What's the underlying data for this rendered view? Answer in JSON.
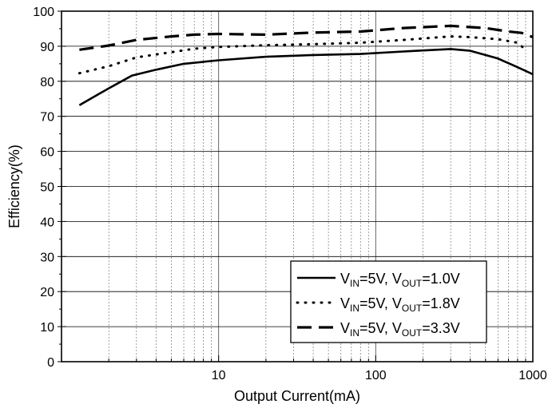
{
  "chart_data": {
    "type": "line",
    "xlabel": "Output Current(mA)",
    "ylabel": "Efficiency(%)",
    "x_scale": "log",
    "xlim": [
      1,
      1000
    ],
    "ylim": [
      0,
      100
    ],
    "x_ticks": [
      10,
      100,
      1000
    ],
    "x_tick_labels": [
      "10",
      "100",
      "1000"
    ],
    "y_ticks": [
      0,
      10,
      20,
      30,
      40,
      50,
      60,
      70,
      80,
      90,
      100
    ],
    "y_tick_labels": [
      "0",
      "10",
      "20",
      "30",
      "40",
      "50",
      "60",
      "70",
      "80",
      "90",
      "100"
    ],
    "grid": true,
    "legend_position": "bottom-right",
    "series": [
      {
        "legend": {
          "v": "V",
          "in": "IN",
          "mid": "=5V, V",
          "out": "OUT",
          "end": "=1.0V"
        },
        "line_style": "solid",
        "color": "#000000",
        "points": [
          [
            1.3,
            73.2
          ],
          [
            2,
            78
          ],
          [
            2.8,
            81.6
          ],
          [
            4,
            83.3
          ],
          [
            6,
            85
          ],
          [
            10,
            86
          ],
          [
            20,
            87
          ],
          [
            40,
            87.5
          ],
          [
            80,
            87.8
          ],
          [
            150,
            88.5
          ],
          [
            200,
            88.8
          ],
          [
            300,
            89.2
          ],
          [
            400,
            88.7
          ],
          [
            600,
            86.5
          ],
          [
            800,
            84
          ],
          [
            1000,
            82
          ]
        ]
      },
      {
        "legend": {
          "v": "V",
          "in": "IN",
          "mid": "=5V, V",
          "out": "OUT",
          "end": "=1.8V"
        },
        "line_style": "dotted",
        "color": "#000000",
        "points": [
          [
            1.3,
            82.3
          ],
          [
            2,
            84.3
          ],
          [
            3,
            86.8
          ],
          [
            5,
            88.3
          ],
          [
            7,
            89.3
          ],
          [
            10,
            89.8
          ],
          [
            20,
            90.3
          ],
          [
            40,
            90.6
          ],
          [
            80,
            91
          ],
          [
            150,
            91.8
          ],
          [
            300,
            92.8
          ],
          [
            400,
            92.6
          ],
          [
            600,
            92
          ],
          [
            800,
            91
          ],
          [
            900,
            89
          ]
        ]
      },
      {
        "legend": {
          "v": "V",
          "in": "IN",
          "mid": "=5V, V",
          "out": "OUT",
          "end": "=3.3V"
        },
        "line_style": "dashed",
        "color": "#000000",
        "points": [
          [
            1.3,
            89
          ],
          [
            2,
            90.2
          ],
          [
            3,
            91.8
          ],
          [
            5,
            92.8
          ],
          [
            7,
            93.3
          ],
          [
            10,
            93.5
          ],
          [
            20,
            93.3
          ],
          [
            40,
            93.9
          ],
          [
            80,
            94.2
          ],
          [
            150,
            95.2
          ],
          [
            300,
            95.8
          ],
          [
            500,
            95.2
          ],
          [
            700,
            94.2
          ],
          [
            850,
            93.8
          ],
          [
            1000,
            92.6
          ]
        ]
      }
    ]
  }
}
